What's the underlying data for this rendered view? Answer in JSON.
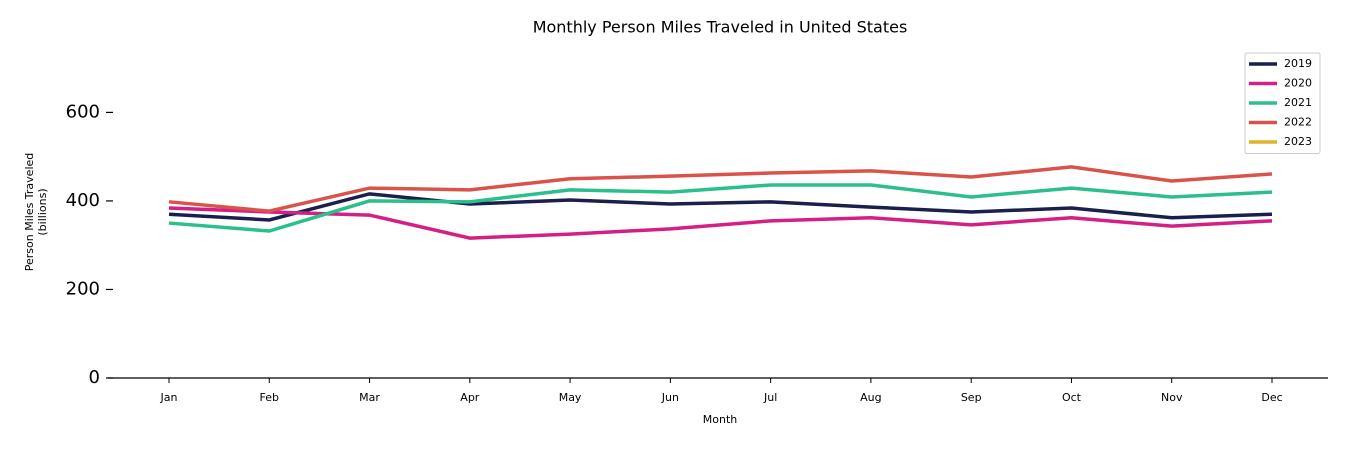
{
  "chart_data": {
    "type": "line",
    "title": "Monthly Person Miles Traveled in United States",
    "xlabel": "Month",
    "ylabel": "Person Miles Traveled\n(billions)",
    "categories": [
      "Jan",
      "Feb",
      "Mar",
      "Apr",
      "May",
      "Jun",
      "Jul",
      "Aug",
      "Sep",
      "Oct",
      "Nov",
      "Dec"
    ],
    "series": [
      {
        "name": "2019",
        "color": "#1b1f4b",
        "values": [
          370,
          357,
          416,
          393,
          402,
          393,
          398,
          386,
          375,
          384,
          362,
          370
        ]
      },
      {
        "name": "2020",
        "color": "#d41f85",
        "values": [
          384,
          375,
          368,
          316,
          325,
          337,
          355,
          362,
          346,
          362,
          343,
          355
        ]
      },
      {
        "name": "2021",
        "color": "#2bbf8a",
        "values": [
          350,
          332,
          400,
          398,
          425,
          420,
          436,
          436,
          409,
          429,
          409,
          420
        ]
      },
      {
        "name": "2022",
        "color": "#d9534a",
        "values": [
          398,
          377,
          429,
          425,
          450,
          456,
          463,
          468,
          454,
          477,
          445,
          461
        ]
      },
      {
        "name": "2023",
        "color": "#e0b42a",
        "values": [
          null,
          null,
          null,
          null,
          null,
          null,
          null,
          null,
          null,
          null,
          null,
          null
        ]
      }
    ],
    "ylim": [
      0,
      750
    ],
    "yticks": [
      0,
      200,
      400,
      600
    ],
    "legend": "upper right"
  }
}
